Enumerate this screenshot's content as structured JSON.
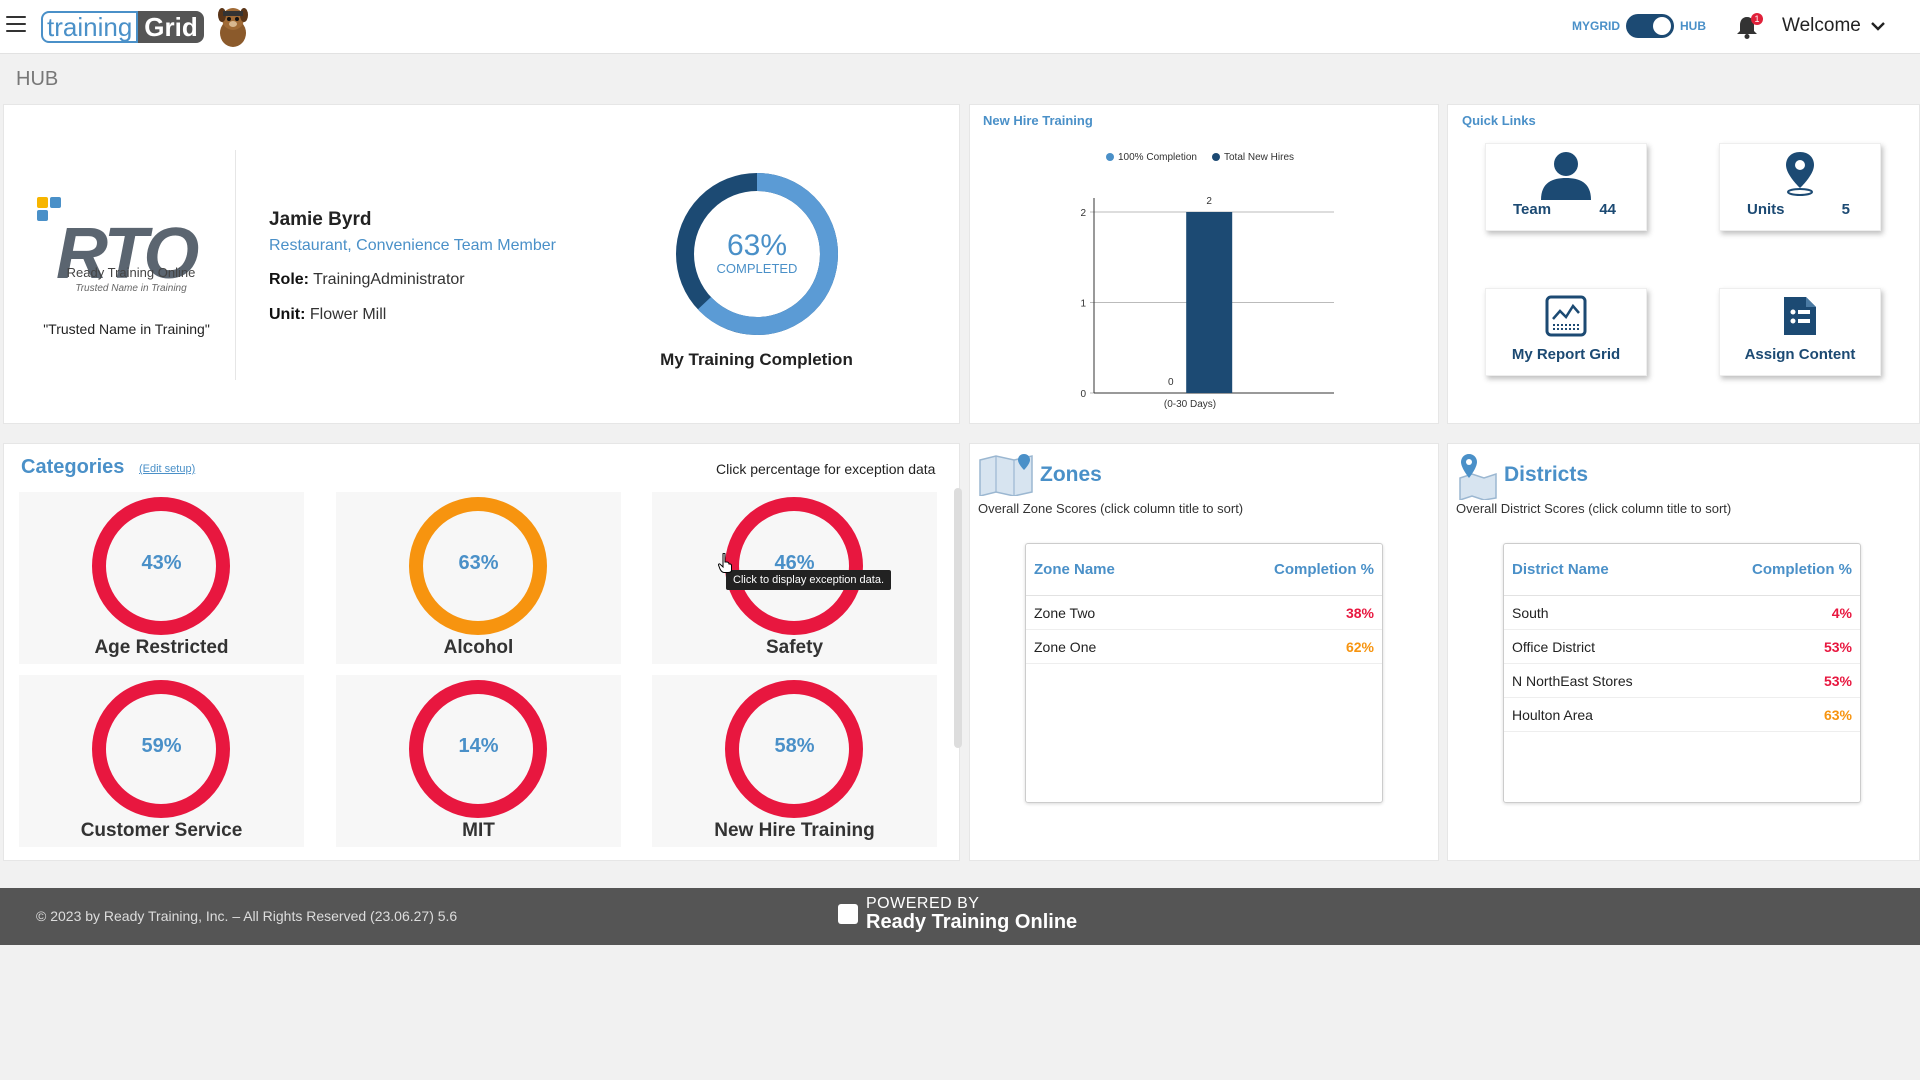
{
  "header": {
    "logo_left": "training",
    "logo_right": "Grid",
    "toggle_left": "MYGRID",
    "toggle_right": "HUB",
    "notification_count": "1",
    "welcome": "Welcome"
  },
  "page_title": "HUB",
  "profile": {
    "org_logo": "RTO",
    "org_name": "Ready Training Online",
    "org_tagline_small": "Trusted Name in Training",
    "org_tagline": "\"Trusted Name in Training\"",
    "name": "Jamie Byrd",
    "position": "Restaurant, Convenience Team Member",
    "role_label": "Role:",
    "role": "TrainingAdministrator",
    "unit_label": "Unit:",
    "unit": "Flower Mill",
    "completion_pct": "63%",
    "completion_value": 63,
    "completion_label": "COMPLETED",
    "completion_title": "My Training Completion"
  },
  "new_hire": {
    "title": "New Hire Training",
    "chart_data": {
      "type": "bar",
      "categories": [
        "(0-30 Days)"
      ],
      "series": [
        {
          "name": "100% Completion",
          "values": [
            0
          ],
          "color": "#4a90c8"
        },
        {
          "name": "Total New Hires",
          "values": [
            2
          ],
          "color": "#1c4a73"
        }
      ],
      "ylim": [
        0,
        2
      ],
      "yticks": [
        "0",
        "1",
        "2"
      ],
      "data_labels": [
        "0",
        "2"
      ],
      "grid": true,
      "legend": "top"
    }
  },
  "quick_links": {
    "title": "Quick Links",
    "items": [
      {
        "label": "Team",
        "count": "44",
        "icon": "person-icon"
      },
      {
        "label": "Units",
        "count": "5",
        "icon": "location-pin-icon"
      },
      {
        "label": "My Report Grid",
        "icon": "report-chart-icon"
      },
      {
        "label": "Assign Content",
        "icon": "document-icon"
      }
    ]
  },
  "categories": {
    "title": "Categories",
    "edit_link": "(Edit setup)",
    "hint": "Click percentage for exception data",
    "tooltip": "Click to display exception data.",
    "items": [
      {
        "name": "Age Restricted",
        "pct": "43%",
        "color": "#e8173f"
      },
      {
        "name": "Alcohol",
        "pct": "63%",
        "color": "#f7940f"
      },
      {
        "name": "Safety",
        "pct": "46%",
        "color": "#e8173f"
      },
      {
        "name": "Customer Service",
        "pct": "59%",
        "color": "#e8173f"
      },
      {
        "name": "MIT",
        "pct": "14%",
        "color": "#e8173f"
      },
      {
        "name": "New Hire Training",
        "pct": "58%",
        "color": "#e8173f"
      }
    ]
  },
  "zones": {
    "title": "Zones",
    "subtitle": "Overall Zone Scores (click column title to sort)",
    "col_name": "Zone Name",
    "col_pct": "Completion %",
    "rows": [
      {
        "name": "Zone Two",
        "pct": "38%",
        "color": "#e8173f"
      },
      {
        "name": "Zone One",
        "pct": "62%",
        "color": "#f7940f"
      }
    ]
  },
  "districts": {
    "title": "Districts",
    "subtitle": "Overall District Scores (click column title to sort)",
    "col_name": "District Name",
    "col_pct": "Completion %",
    "rows": [
      {
        "name": "South",
        "pct": "4%",
        "color": "#e8173f"
      },
      {
        "name": "Office District",
        "pct": "53%",
        "color": "#e8173f"
      },
      {
        "name": "N NorthEast Stores",
        "pct": "53%",
        "color": "#e8173f"
      },
      {
        "name": "Houlton Area",
        "pct": "63%",
        "color": "#f7940f"
      }
    ]
  },
  "footer": {
    "copyright": "© 2023 by Ready Training, Inc. – All Rights Reserved (23.06.27) 5.6",
    "powered_by": "POWERED BY",
    "powered_name": "Ready Training Online"
  }
}
